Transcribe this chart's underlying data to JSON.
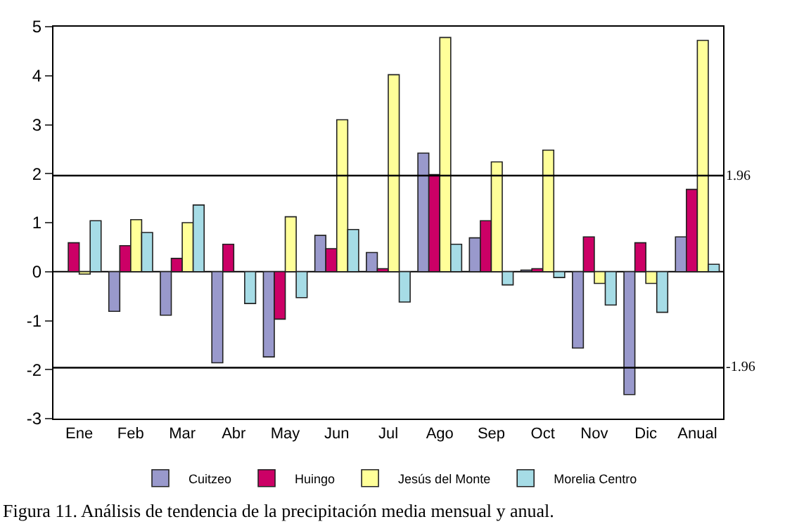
{
  "chart_data": {
    "type": "bar",
    "categories": [
      "Ene",
      "Feb",
      "Mar",
      "Abr",
      "May",
      "Jun",
      "Jul",
      "Ago",
      "Sep",
      "Oct",
      "Nov",
      "Dic",
      "Anual"
    ],
    "series": [
      {
        "name": "Cuitzeo",
        "color": "#9999cc",
        "values": [
          null,
          -0.81,
          -0.89,
          -1.86,
          -1.74,
          0.74,
          0.39,
          2.42,
          0.69,
          0.03,
          -1.56,
          -2.51,
          0.71
        ]
      },
      {
        "name": "Huingo",
        "color": "#cc0066",
        "values": [
          0.59,
          0.53,
          0.27,
          0.56,
          -0.97,
          0.47,
          0.06,
          1.98,
          1.04,
          0.06,
          0.71,
          0.59,
          1.68
        ]
      },
      {
        "name": "Jesús del Monte",
        "color": "#ffff99",
        "values": [
          -0.05,
          1.06,
          1.0,
          null,
          1.12,
          3.1,
          4.02,
          4.78,
          2.24,
          2.48,
          -0.24,
          -0.24,
          4.72
        ]
      },
      {
        "name": "Morelia Centro",
        "color": "#a6dce6",
        "values": [
          1.04,
          0.8,
          1.36,
          -0.65,
          -0.53,
          0.86,
          -0.62,
          0.56,
          -0.27,
          -0.12,
          -0.68,
          -0.83,
          0.15
        ]
      }
    ],
    "ylim": [
      -3,
      5
    ],
    "yticks": [
      -3,
      -2,
      -1,
      0,
      1,
      2,
      3,
      4,
      5
    ],
    "legend": "bottom",
    "ref_lines": [
      {
        "axis": "y",
        "value": 1.96,
        "label": "1.96",
        "color": "#000000"
      },
      {
        "axis": "y",
        "value": -1.96,
        "label": "-1.96",
        "color": "#000000"
      }
    ],
    "annotations": [
      "Figura 11. Análisis de tendencia de la precipitación media mensual y anual."
    ]
  }
}
